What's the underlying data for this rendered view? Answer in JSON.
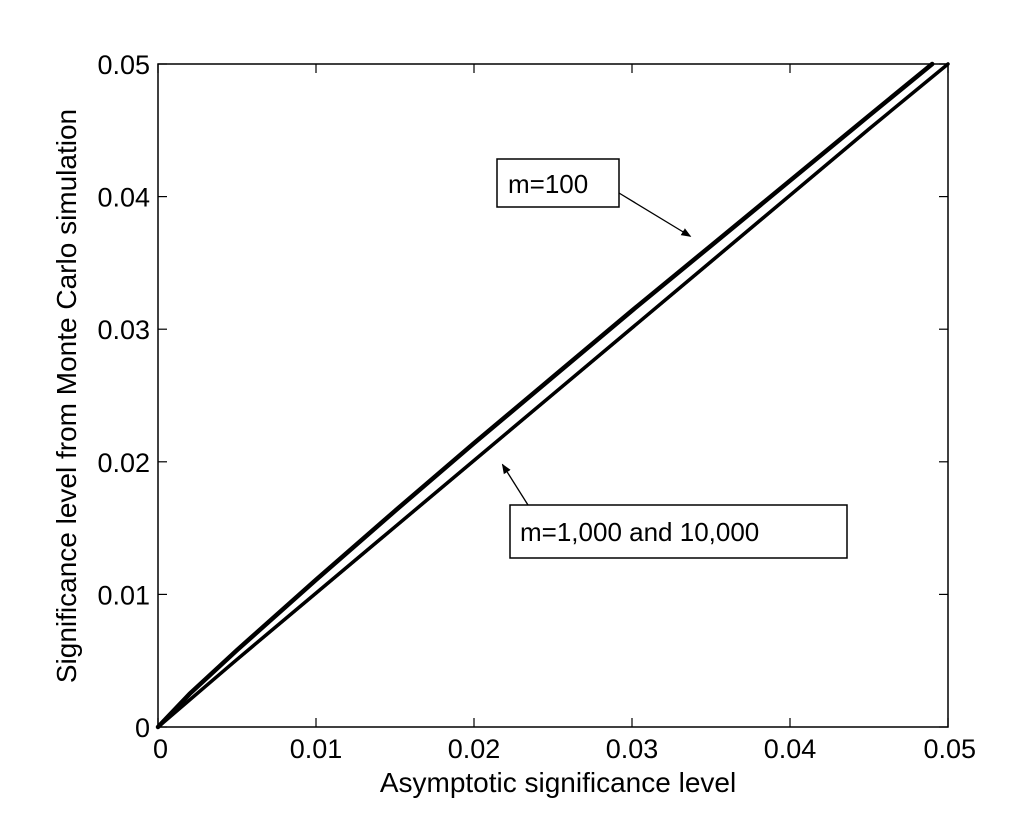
{
  "chart_data": {
    "type": "line",
    "title": "",
    "xlabel": "Asymptotic significance level",
    "ylabel": "Significance level from Monte Carlo simulation",
    "xlim": [
      0,
      0.05
    ],
    "ylim": [
      0,
      0.05
    ],
    "xticks": [
      "0",
      "0.01",
      "0.02",
      "0.03",
      "0.04",
      "0.05"
    ],
    "yticks": [
      "0",
      "0.01",
      "0.02",
      "0.03",
      "0.04",
      "0.05"
    ],
    "grid": false,
    "series": [
      {
        "name": "m=100",
        "x": [
          0,
          0.002,
          0.005,
          0.01,
          0.015,
          0.02,
          0.025,
          0.03,
          0.035,
          0.04,
          0.045,
          0.049
        ],
        "y": [
          0,
          0.0025,
          0.0058,
          0.0111,
          0.0163,
          0.0214,
          0.0264,
          0.0314,
          0.0363,
          0.0412,
          0.0461,
          0.05
        ],
        "color": "#000000"
      },
      {
        "name": "m=1,000",
        "x": [
          0,
          0.005,
          0.01,
          0.015,
          0.02,
          0.025,
          0.03,
          0.035,
          0.04,
          0.045,
          0.05
        ],
        "y": [
          0,
          0.0051,
          0.0101,
          0.0151,
          0.0201,
          0.0251,
          0.0301,
          0.0351,
          0.0401,
          0.0451,
          0.05
        ],
        "color": "#000000"
      },
      {
        "name": "10,000",
        "x": [
          0,
          0.005,
          0.01,
          0.015,
          0.02,
          0.025,
          0.03,
          0.035,
          0.04,
          0.045,
          0.05
        ],
        "y": [
          0,
          0.005,
          0.01,
          0.015,
          0.02,
          0.025,
          0.03,
          0.035,
          0.04,
          0.045,
          0.05
        ],
        "color": "#000000"
      }
    ],
    "annotations": [
      {
        "text": "m=100",
        "arrow_to": [
          0.0337,
          0.037
        ]
      },
      {
        "text": "m=1,000 and 10,000",
        "arrow_to": [
          0.0218,
          0.0198
        ]
      }
    ]
  }
}
